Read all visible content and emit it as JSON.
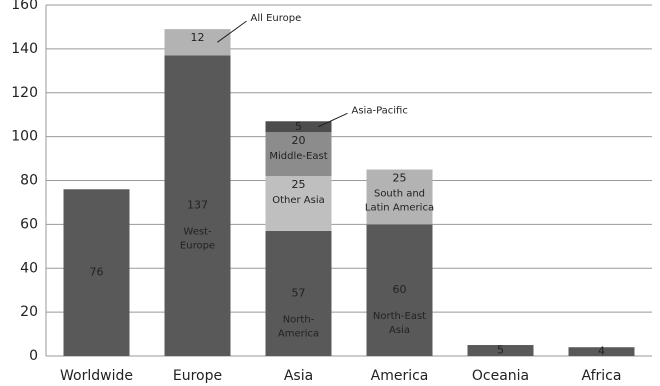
{
  "chart_data": {
    "type": "stacked_bar",
    "categories": [
      "Worldwide",
      "Europe",
      "Asia",
      "America",
      "Oceania",
      "Africa"
    ],
    "stacks": [
      [
        {
          "value": 76,
          "color": "#595959"
        }
      ],
      [
        {
          "value": 137,
          "color": "#595959",
          "label": [
            "West-",
            "Europe"
          ]
        },
        {
          "value": 12,
          "color": "#b3b3b3",
          "callout": "All Europe"
        }
      ],
      [
        {
          "value": 57,
          "color": "#595959",
          "label": [
            "North-",
            "America"
          ]
        },
        {
          "value": 25,
          "color": "#bfbfbf",
          "label": [
            "Other Asia"
          ]
        },
        {
          "value": 20,
          "color": "#8c8c8c",
          "label": [
            "Middle-East"
          ]
        },
        {
          "value": 5,
          "color": "#4d4d4d",
          "callout": "Asia-Pacific"
        }
      ],
      [
        {
          "value": 60,
          "color": "#595959",
          "label": [
            "North-East",
            "Asia"
          ]
        },
        {
          "value": 25,
          "color": "#b3b3b3",
          "label": [
            "South and",
            "Latin America"
          ]
        }
      ],
      [
        {
          "value": 5,
          "color": "#595959"
        }
      ],
      [
        {
          "value": 4,
          "color": "#595959"
        }
      ]
    ],
    "ylim": [
      0,
      160
    ],
    "yticks": [
      0,
      20,
      40,
      60,
      80,
      100,
      120,
      140,
      160
    ],
    "grid": true
  }
}
